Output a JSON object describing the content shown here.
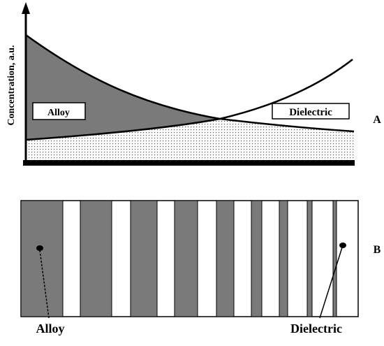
{
  "panel_a": {
    "y_axis_label": "Concentration, a.u.",
    "alloy_label": "Alloy",
    "dielectric_label": "Dielectric",
    "panel_label": "A"
  },
  "panel_b": {
    "alloy_label": "Alloy",
    "dielectric_label": "Dielectric",
    "panel_label": "B"
  }
}
